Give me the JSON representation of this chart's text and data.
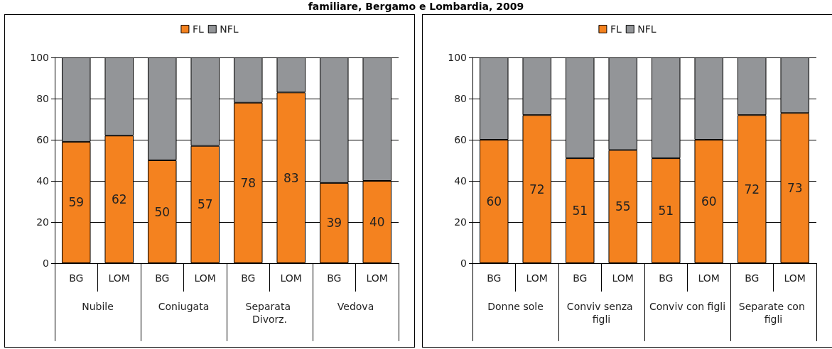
{
  "chart_data": [
    {
      "type": "bar",
      "title": "familiare, Bergamo e Lombardia, 2009",
      "categories": [
        "BG",
        "LOM",
        "BG",
        "LOM",
        "BG",
        "LOM",
        "BG",
        "LOM"
      ],
      "annotations": [
        "Nubile",
        "Coniugata",
        "Separata Divorz.",
        "Vedova"
      ],
      "stacked": true,
      "ylim": [
        0,
        100
      ],
      "yticks": [
        0,
        20,
        40,
        60,
        80,
        100
      ],
      "grid": "y",
      "legend": "top",
      "series": [
        {
          "name": "FL",
          "color": "#f4821f",
          "values": [
            59,
            62,
            50,
            57,
            78,
            83,
            39,
            40
          ],
          "value_labels": [
            "59",
            "62",
            "50",
            "57",
            "78",
            "83",
            "39",
            "40"
          ]
        },
        {
          "name": "NFL",
          "color": "#939598",
          "values": [
            41,
            38,
            50,
            43,
            22,
            17,
            61,
            60
          ]
        }
      ]
    },
    {
      "type": "bar",
      "categories": [
        "BG",
        "LOM",
        "BG",
        "LOM",
        "BG",
        "LOM",
        "BG",
        "LOM"
      ],
      "annotations": [
        "Donne sole",
        "Conviv senza figli",
        "Conviv con figli",
        "Separate con figli"
      ],
      "stacked": true,
      "ylim": [
        0,
        100
      ],
      "yticks": [
        0,
        20,
        40,
        60,
        80,
        100
      ],
      "grid": "y",
      "legend": "top",
      "series": [
        {
          "name": "FL",
          "color": "#f4821f",
          "values": [
            60,
            72,
            51,
            55,
            51,
            60,
            72,
            73
          ],
          "value_labels": [
            "60",
            "72",
            "51",
            "55",
            "51",
            "60",
            "72",
            "73"
          ]
        },
        {
          "name": "NFL",
          "color": "#939598",
          "values": [
            40,
            28,
            49,
            45,
            49,
            40,
            28,
            27
          ]
        }
      ]
    }
  ]
}
